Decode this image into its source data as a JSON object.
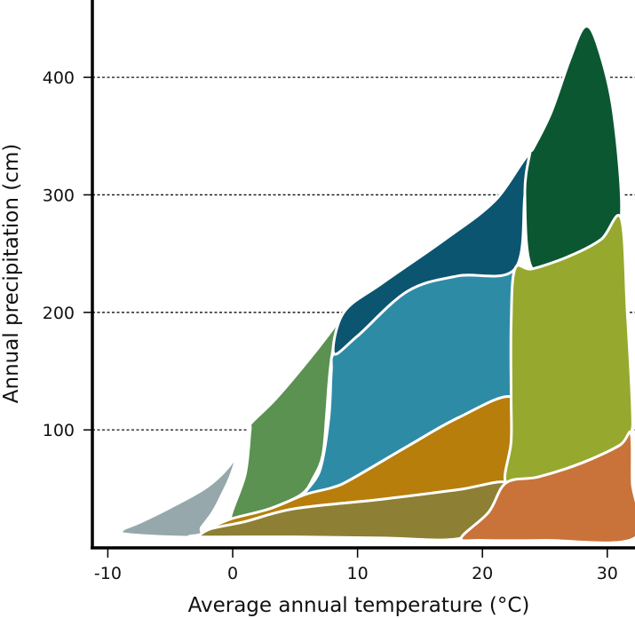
{
  "chart_data": {
    "type": "area",
    "title": "",
    "xlabel": "Average annual temperature (°C)",
    "ylabel": "Annual precipitation (cm)",
    "xlim": [
      -11,
      32.5
    ],
    "ylim": [
      0,
      455
    ],
    "x_ticks": [
      -10,
      0,
      10,
      20,
      30
    ],
    "x_tick_labels": [
      "-10",
      "0",
      "10",
      "20",
      "30"
    ],
    "y_ticks": [
      100,
      200,
      300,
      400
    ],
    "y_tick_labels": [
      "100",
      "200",
      "300",
      "400"
    ],
    "grid": "horizontal dashed lines at y ticks",
    "region_outline_color": "#ffffff",
    "regions": [
      {
        "id": "region-tundra",
        "color": "#96a8ac",
        "points": [
          [
            -3,
            9
          ],
          [
            -8.3,
            11
          ],
          [
            -8.8,
            15
          ],
          [
            -7.5,
            21
          ],
          [
            -5,
            34
          ],
          [
            -2,
            52
          ],
          [
            0,
            73
          ],
          [
            1.4,
            100
          ],
          [
            0.6,
            84
          ],
          [
            -0.2,
            60
          ],
          [
            -0.9,
            44
          ],
          [
            -1.6,
            30
          ],
          [
            -2.5,
            17
          ]
        ]
      },
      {
        "id": "region-boreal-forest",
        "color": "#5b9151",
        "points": [
          [
            -0.2,
            24
          ],
          [
            1,
            62
          ],
          [
            1.4,
            100
          ],
          [
            1.5,
            106
          ],
          [
            3.5,
            127
          ],
          [
            6.5,
            165
          ],
          [
            8.5,
            193
          ],
          [
            8.9,
            200
          ],
          [
            8.3,
            183
          ],
          [
            7.9,
            160
          ],
          [
            7.7,
            140
          ],
          [
            7.5,
            110
          ],
          [
            7.2,
            78
          ],
          [
            6.5,
            60
          ],
          [
            5.5,
            45
          ],
          [
            3,
            33
          ],
          [
            1,
            27
          ]
        ]
      },
      {
        "id": "region-temperate-seasonal-forest",
        "color": "#2e8ba5",
        "points": [
          [
            5.8,
            45
          ],
          [
            7,
            66
          ],
          [
            7.7,
            110
          ],
          [
            7.9,
            150
          ],
          [
            8.1,
            165
          ],
          [
            10,
            180
          ],
          [
            14,
            218
          ],
          [
            18,
            231
          ],
          [
            22.6,
            237
          ],
          [
            22.3,
            190
          ],
          [
            22.3,
            128
          ],
          [
            18,
            110
          ],
          [
            14,
            86
          ],
          [
            9.5,
            58
          ],
          [
            8,
            51
          ]
        ]
      },
      {
        "id": "region-temperate-rainforest",
        "color": "#0b5570",
        "points": [
          [
            8.1,
            165
          ],
          [
            8.9,
            200
          ],
          [
            12,
            225
          ],
          [
            17,
            262
          ],
          [
            21,
            295
          ],
          [
            23.8,
            335
          ],
          [
            23.4,
            300
          ],
          [
            22.6,
            237
          ],
          [
            18,
            231
          ],
          [
            14,
            218
          ],
          [
            10,
            180
          ]
        ]
      },
      {
        "id": "region-woodland-shrubland",
        "color": "#b77e0c",
        "points": [
          [
            -0.2,
            24
          ],
          [
            3,
            33
          ],
          [
            5.8,
            45
          ],
          [
            8,
            51
          ],
          [
            9.5,
            58
          ],
          [
            14,
            86
          ],
          [
            18,
            110
          ],
          [
            22.3,
            128
          ],
          [
            22.3,
            90
          ],
          [
            21.9,
            55
          ],
          [
            18,
            49
          ],
          [
            12,
            41
          ],
          [
            5,
            33
          ],
          [
            1,
            22
          ],
          [
            -1.7,
            16
          ]
        ]
      },
      {
        "id": "region-temperate-grassland-desert",
        "color": "#8d7f34",
        "points": [
          [
            -3,
            9
          ],
          [
            -2.6,
            11
          ],
          [
            -1.7,
            16
          ],
          [
            1,
            22
          ],
          [
            5,
            33
          ],
          [
            12,
            41
          ],
          [
            18,
            49
          ],
          [
            21.9,
            55
          ],
          [
            20.5,
            30
          ],
          [
            18.3,
            8
          ],
          [
            12,
            8
          ],
          [
            5,
            9
          ]
        ]
      },
      {
        "id": "region-tropical-rainforest",
        "color": "#0b5732",
        "points": [
          [
            23.4,
            300
          ],
          [
            23.8,
            335
          ],
          [
            24.1,
            340
          ],
          [
            25.5,
            370
          ],
          [
            27,
            415
          ],
          [
            28.2,
            443
          ],
          [
            29.2,
            428
          ],
          [
            30.5,
            370
          ],
          [
            31.1,
            280
          ],
          [
            29.5,
            262
          ],
          [
            27,
            248
          ],
          [
            24,
            237
          ]
        ]
      },
      {
        "id": "region-tropical-seasonal-forest-savanna",
        "color": "#97a82e",
        "points": [
          [
            22.6,
            237
          ],
          [
            24,
            237
          ],
          [
            27,
            248
          ],
          [
            29.5,
            262
          ],
          [
            31.1,
            280
          ],
          [
            31.6,
            200
          ],
          [
            32,
            120
          ],
          [
            31.9,
            97
          ],
          [
            31,
            87
          ],
          [
            28,
            72
          ],
          [
            24.5,
            60
          ],
          [
            21.9,
            55
          ],
          [
            22.3,
            90
          ],
          [
            22.3,
            128
          ],
          [
            22.3,
            190
          ]
        ]
      },
      {
        "id": "region-subtropical-desert",
        "color": "#c9733b",
        "points": [
          [
            18.3,
            8
          ],
          [
            20.5,
            30
          ],
          [
            21.9,
            55
          ],
          [
            24.5,
            60
          ],
          [
            28,
            72
          ],
          [
            31,
            87
          ],
          [
            31.9,
            97
          ],
          [
            32,
            55
          ],
          [
            32.2,
            8
          ],
          [
            25,
            6
          ],
          [
            20,
            6
          ]
        ]
      }
    ]
  }
}
